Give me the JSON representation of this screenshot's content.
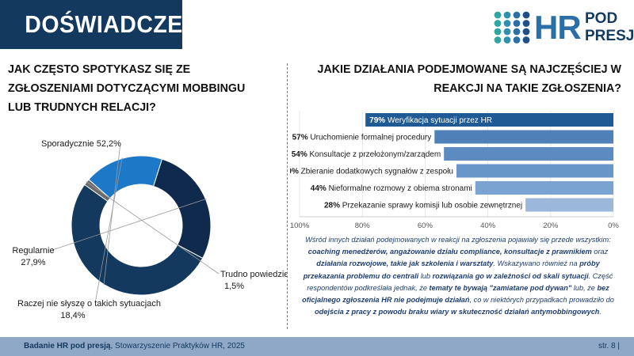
{
  "header": {
    "title": "DOŚWIADCZENIA"
  },
  "logo": {
    "hr": "HR",
    "pod": "POD",
    "presja": "PRESJĄ"
  },
  "left": {
    "question": "JAK CZĘSTO SPOTYKASZ SIĘ ZE ZGŁOSZENIAMI DOTYCZĄCYMI MOBBINGU LUB TRUDNYCH RELACJI?"
  },
  "right": {
    "question": "JAKIE DZIAŁANIA PODEJMOWANE SĄ NAJCZĘŚCIEJ W REAKCJI NA TAKIE ZGŁOSZENIA?"
  },
  "chart_data": [
    {
      "type": "pie",
      "variant": "donut",
      "title": "",
      "series": [
        {
          "name": "Sporadycznie",
          "value": 52.2,
          "value_label": "52,2%",
          "color": "#13395e",
          "label_lines": [
            "Sporadycznie 52,2%"
          ]
        },
        {
          "name": "Trudno powiedzieć",
          "value": 1.5,
          "value_label": "1,5%",
          "color": "#6b6b6b",
          "label_lines": [
            "Trudno powiedzieć",
            "1,5%"
          ]
        },
        {
          "name": "Raczej nie słyszę o takich sytuacjach",
          "value": 18.4,
          "value_label": "18,4%",
          "color": "#1d78c8",
          "label_lines": [
            "Raczej nie słyszę o takich sytuacjach",
            "18,4%"
          ]
        },
        {
          "name": "Regularnie",
          "value": 27.9,
          "value_label": "27,9%",
          "color": "#0f2a4d",
          "label_lines": [
            "Regularnie",
            "27,9%"
          ]
        }
      ]
    },
    {
      "type": "bar",
      "orientation": "horizontal",
      "title": "",
      "x_axis": {
        "reversed": true,
        "range": [
          0,
          100
        ],
        "ticks": [
          "100%",
          "80%",
          "60%",
          "40%",
          "20%",
          "0%"
        ]
      },
      "categories": [
        "Weryfikacja sytuacji przez HR",
        "Uruchomienie formalnej procedury",
        "Konsultacje z przełożonym/zarządem",
        "Zbieranie dodatkowych sygnałów z zespołu",
        "Nieformalne rozmowy z obiema stronami",
        "Przekazanie sprawy komisji lub osobie zewnętrznej"
      ],
      "values": [
        79,
        57,
        54,
        50,
        44,
        28
      ],
      "value_labels": [
        "79%",
        "57%",
        "54%",
        "50%",
        "44%",
        "28%"
      ],
      "colors": [
        "#1f5a94",
        "#4f80b7",
        "#5b8bc1",
        "#6996c8",
        "#7aa3d1",
        "#9bb8db"
      ]
    }
  ],
  "summary": {
    "p1": "Wśród innych działań podejmowanych w reakcji na zgłoszenia pojawiały się przede wszystkim:",
    "b1": "coaching menedżerów, angażowanie działu compliance, konsultacje z prawnikiem",
    "p2": " oraz ",
    "b2": "działania rozwojowe, takie jak szkolenia i warsztaty",
    "p3": ". Wskazywano również na ",
    "b3": "próby przekazania problemu do centrali",
    "p4": " lub ",
    "b4": "rozwiązania go w zależności od skali sytuacji",
    "p5": ". Część respondentów podkreślała jednak, że ",
    "b5": "tematy te bywają \"zamiatane pod dywan\"",
    "p6": " lub, że ",
    "b6": "bez oficjalnego zgłoszenia HR nie podejmuje działań",
    "p7": ", co w niektórych przypadkach prowadziło do ",
    "b7": "odejścia z pracy z powodu braku wiary w skuteczność działań antymobbingowych",
    "p8": "."
  },
  "footer": {
    "source_bold": "Badanie HR pod presją",
    "source_rest": ", Stowarzyszenie Praktyków HR, 2025",
    "page": "str. 8 |"
  }
}
